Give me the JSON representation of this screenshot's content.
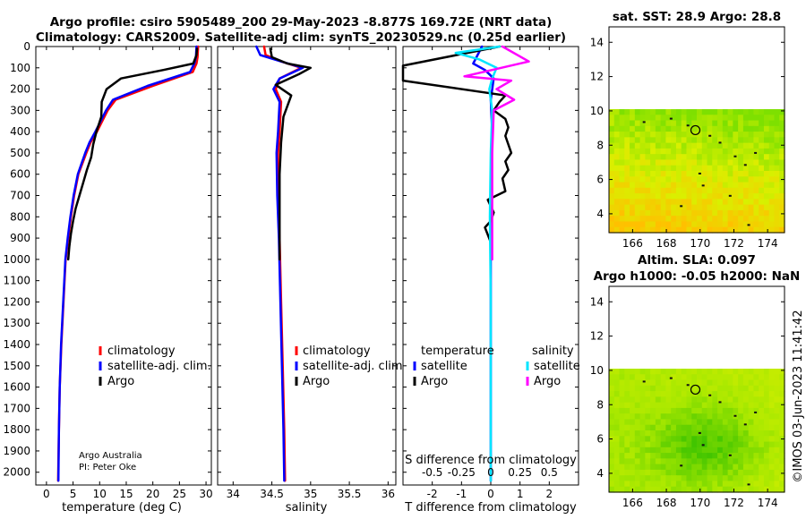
{
  "header": {
    "line1": "Argo profile: csiro 5905489_200 29-May-2023 -8.877S 169.72E (NRT data)",
    "line2": "Climatology: CARS2009. Satellite-adj clim: synTS_20230529.nc (0.25d earlier)"
  },
  "colors": {
    "climatology": "#ff0000",
    "satellite": "#0000ff",
    "argo": "#000000",
    "t_sat": "#0000ff",
    "s_sat": "#00e5ff",
    "s_argo": "#ff00ff"
  },
  "chart_data": [
    {
      "id": "temperature",
      "type": "line",
      "xlabel": "temperature (deg C)",
      "xlim": [
        -2,
        31
      ],
      "xticks": [
        0,
        5,
        10,
        15,
        20,
        25,
        30
      ],
      "ylim": [
        2060,
        0
      ],
      "yticks": [
        0,
        100,
        200,
        300,
        400,
        500,
        600,
        700,
        800,
        900,
        1000,
        1100,
        1200,
        1300,
        1400,
        1500,
        1600,
        1700,
        1800,
        1900,
        2000
      ],
      "legend": [
        "climatology",
        "satellite-adj. clim.",
        "Argo"
      ],
      "annotation": [
        "Argo Australia",
        "PI: Peter Oke"
      ],
      "series": [
        {
          "name": "climatology",
          "color": "#ff0000",
          "x": [
            28.5,
            28.4,
            28.2,
            27.5,
            20,
            13,
            11.5,
            10.5,
            9.5,
            8.3,
            7.5,
            6,
            5.2,
            4.6,
            4.1,
            3.6,
            3.2,
            2.8,
            2.5,
            2.35,
            2.2
          ],
          "y": [
            0,
            50,
            80,
            120,
            185,
            250,
            300,
            350,
            400,
            450,
            500,
            600,
            700,
            800,
            900,
            1000,
            1200,
            1400,
            1600,
            1800,
            2040
          ]
        },
        {
          "name": "satellite-adj. clim.",
          "color": "#0000ff",
          "x": [
            28.2,
            28.1,
            27.8,
            27,
            19,
            12.5,
            11.2,
            10.2,
            9.2,
            8.1,
            7.3,
            5.9,
            5.1,
            4.5,
            4,
            3.55,
            3.15,
            2.75,
            2.5,
            2.35,
            2.25
          ],
          "y": [
            0,
            50,
            80,
            120,
            185,
            250,
            300,
            350,
            400,
            450,
            500,
            600,
            700,
            800,
            900,
            1000,
            1200,
            1400,
            1600,
            1800,
            2040
          ]
        },
        {
          "name": "Argo",
          "color": "#000000",
          "x": [
            28.3,
            28.2,
            27.6,
            22,
            14,
            11.3,
            10.4,
            10.3,
            9.4,
            8.8,
            8.4,
            7.6,
            6.9,
            6.2,
            5.5,
            5.0,
            4.6,
            4.3,
            4.1
          ],
          "y": [
            10,
            40,
            80,
            110,
            150,
            200,
            260,
            330,
            400,
            460,
            520,
            580,
            640,
            700,
            760,
            820,
            880,
            940,
            1000
          ]
        }
      ]
    },
    {
      "id": "salinity",
      "type": "line",
      "xlabel": "salinity",
      "xlim": [
        33.8,
        36.1
      ],
      "xticks": [
        34,
        34.5,
        35,
        35.5,
        36
      ],
      "ylim": [
        2060,
        0
      ],
      "legend": [
        "climatology",
        "satellite-adj. clim.",
        "Argo"
      ],
      "series": [
        {
          "name": "climatology",
          "color": "#ff0000",
          "x": [
            34.4,
            34.42,
            34.62,
            34.88,
            34.6,
            34.55,
            34.62,
            34.6,
            34.58,
            34.58,
            34.6,
            34.62,
            34.64,
            34.66,
            34.67
          ],
          "y": [
            0,
            40,
            70,
            100,
            150,
            200,
            260,
            400,
            500,
            700,
            900,
            1200,
            1500,
            1800,
            2040
          ]
        },
        {
          "name": "satellite-adj. clim.",
          "color": "#0000ff",
          "x": [
            34.3,
            34.35,
            34.62,
            34.9,
            34.6,
            34.52,
            34.6,
            34.58,
            34.56,
            34.57,
            34.59,
            34.61,
            34.63,
            34.65,
            34.66
          ],
          "y": [
            0,
            40,
            70,
            100,
            150,
            200,
            260,
            400,
            500,
            700,
            900,
            1200,
            1500,
            1800,
            2040
          ]
        },
        {
          "name": "Argo",
          "color": "#000000",
          "x": [
            34.48,
            34.5,
            34.7,
            35.0,
            34.85,
            34.55,
            34.75,
            34.65,
            34.62,
            34.6,
            34.6,
            34.6
          ],
          "y": [
            10,
            50,
            80,
            100,
            130,
            180,
            230,
            330,
            450,
            600,
            800,
            1000
          ]
        }
      ]
    },
    {
      "id": "differences",
      "type": "line",
      "xlabel": "T difference from climatology",
      "xlim": [
        -3,
        3
      ],
      "xticks": [
        -2,
        -1,
        0,
        1,
        2
      ],
      "xticklabels": [
        "-2",
        "-1",
        "0",
        "1",
        "2"
      ],
      "secondary_xlabel": "S difference from climatology",
      "secondary_xticklabels": [
        "-0.5",
        "-0.25",
        "0",
        "0.25",
        "0.5"
      ],
      "ylim": [
        2060,
        0
      ],
      "legend_headers": [
        "temperature",
        "salinity"
      ],
      "legend_t": [
        "satellite",
        "Argo"
      ],
      "legend_s": [
        "satellite",
        "Argo"
      ],
      "series": [
        {
          "name": "T satellite",
          "color": "#0000ff",
          "x": [
            -0.3,
            -0.6,
            -0.2,
            0.1,
            0,
            0.05,
            0.02,
            0,
            0
          ],
          "y": [
            0,
            80,
            110,
            150,
            250,
            400,
            700,
            1000,
            2040
          ]
        },
        {
          "name": "T Argo",
          "color": "#000000",
          "x": [
            0.3,
            -3,
            -3,
            -3,
            0.5,
            0.3,
            0.1,
            0.5,
            0.6,
            0.5,
            0.6,
            0.7,
            0.5,
            0.6,
            0.4,
            0.5,
            -0.1,
            0.1,
            0,
            -0.2,
            0,
            0
          ],
          "y": [
            0,
            90,
            120,
            160,
            230,
            260,
            300,
            340,
            380,
            420,
            460,
            500,
            540,
            580,
            620,
            680,
            720,
            780,
            820,
            850,
            920,
            1000
          ]
        },
        {
          "name": "S satellite",
          "color": "#00e5ff",
          "x": [
            0.3,
            -1.2,
            -0.4,
            0.2,
            0.05,
            -0.05,
            0.05,
            0,
            -0.03,
            0,
            0
          ],
          "y": [
            0,
            30,
            60,
            100,
            150,
            200,
            300,
            500,
            800,
            1200,
            2040
          ]
        },
        {
          "name": "S Argo",
          "color": "#ff00ff",
          "x": [
            0.4,
            1.3,
            -0.9,
            0.7,
            0.2,
            0.8,
            0.1,
            0.05,
            0.05,
            0.05
          ],
          "y": [
            0,
            70,
            140,
            160,
            200,
            250,
            300,
            500,
            800,
            1000
          ]
        }
      ]
    },
    {
      "id": "sst_map",
      "type": "heatmap",
      "title": "sat. SST: 28.9 Argo: 28.8",
      "xticks": [
        166,
        168,
        170,
        172,
        174
      ],
      "yticks": [
        4,
        6,
        8,
        10,
        12,
        14
      ],
      "xlim": [
        164.6,
        175
      ],
      "ylim": [
        2.9,
        14.9
      ],
      "data_top": 10.1,
      "float_position": {
        "lon": 169.72,
        "lat": 8.877
      }
    },
    {
      "id": "sla_map",
      "type": "heatmap",
      "title_line1": "Altim. SLA: 0.097",
      "title_line2": "Argo h1000: -0.05 h2000: NaN",
      "xticks": [
        166,
        168,
        170,
        172,
        174
      ],
      "yticks": [
        4,
        6,
        8,
        10,
        12,
        14
      ],
      "xlim": [
        164.6,
        175
      ],
      "ylim": [
        2.9,
        14.9
      ],
      "data_top": 10.1,
      "float_position": {
        "lon": 169.72,
        "lat": 8.877
      }
    }
  ],
  "watermark": "©IMOS 03-Jun-2023 11:41:42"
}
